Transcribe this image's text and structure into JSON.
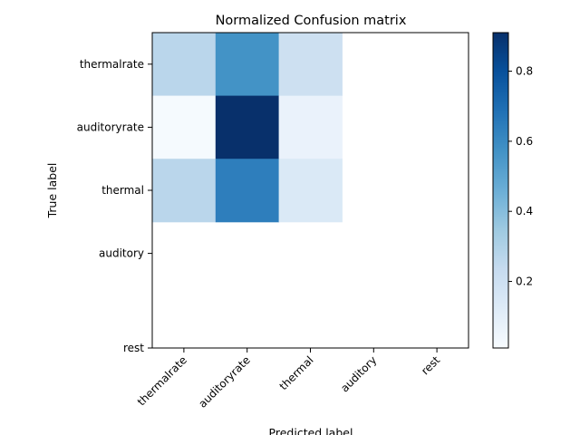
{
  "chart_data": {
    "type": "heatmap",
    "title": "Normalized Confusion matrix",
    "xlabel": "Predicted label",
    "ylabel": "True label",
    "x_categories": [
      "thermalrate",
      "auditoryrate",
      "thermal",
      "auditory",
      "rest"
    ],
    "y_categories": [
      "thermalrate",
      "auditoryrate",
      "thermal",
      "auditory",
      "rest"
    ],
    "values": [
      [
        0.27,
        0.57,
        0.2,
        null,
        null
      ],
      [
        0.02,
        0.91,
        0.07,
        null,
        null
      ],
      [
        0.27,
        0.64,
        0.14,
        null,
        null
      ],
      [
        null,
        null,
        null,
        null,
        null
      ],
      [
        null,
        null,
        null,
        null,
        null
      ]
    ],
    "colormap": "Blues",
    "colorbar": {
      "range": [
        0.01,
        0.91
      ],
      "ticks": [
        0.2,
        0.4,
        0.6,
        0.8
      ],
      "tick_labels": [
        "0.2",
        "0.4",
        "0.6",
        "0.8"
      ]
    }
  }
}
